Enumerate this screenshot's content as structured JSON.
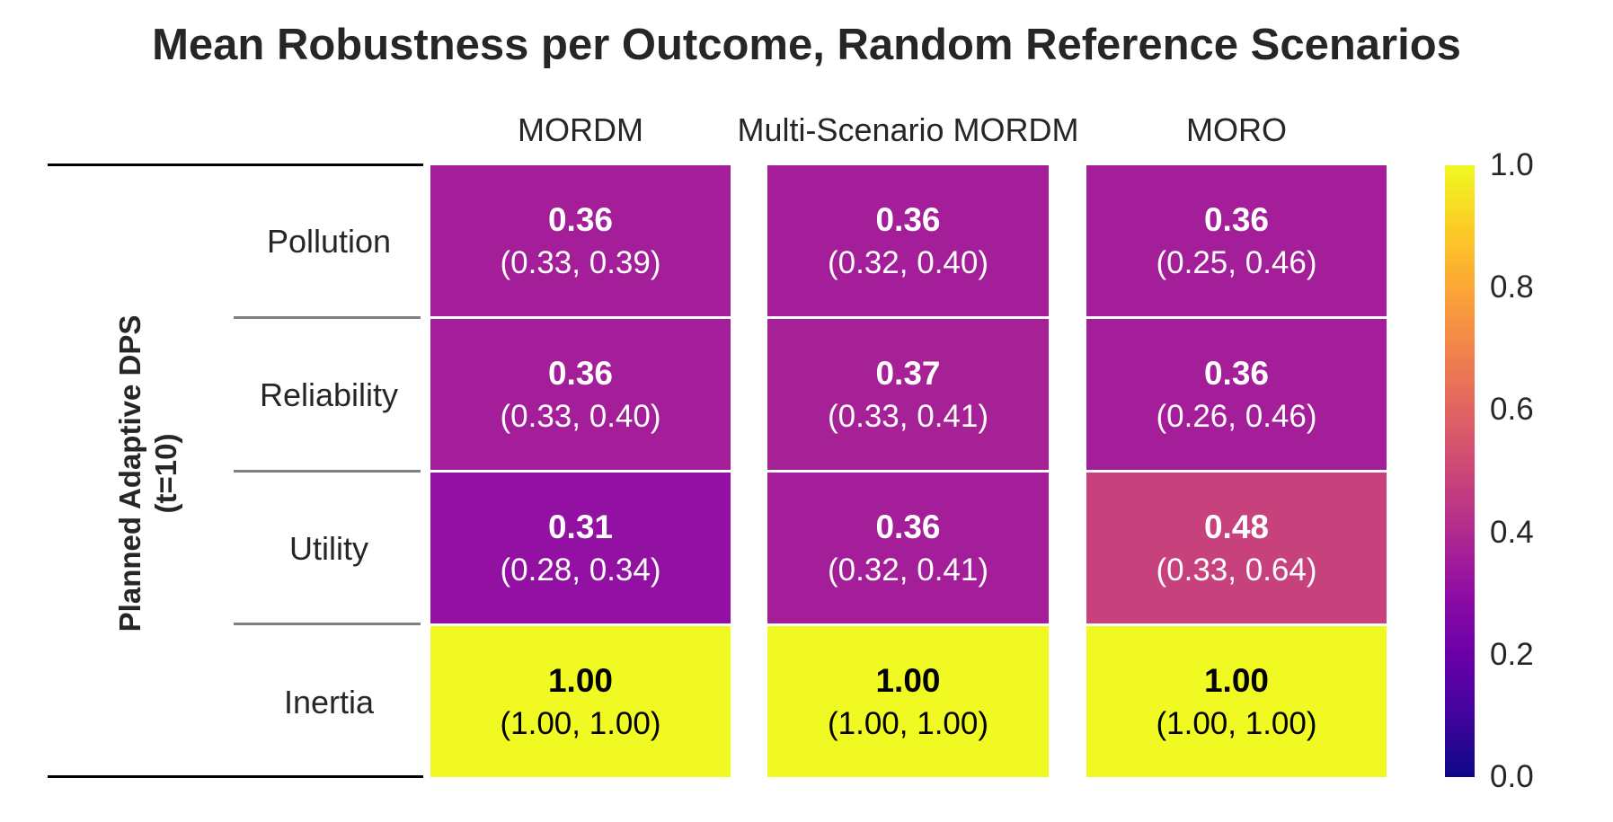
{
  "chart_data": {
    "type": "heatmap",
    "title": "Mean Robustness per Outcome, Random Reference Scenarios",
    "columns": [
      "MORDM",
      "Multi-Scenario MORDM",
      "MORO"
    ],
    "group_label_line1": "Planned Adaptive DPS",
    "group_label_line2": "(t=10)",
    "rows": [
      "Pollution",
      "Reliability",
      "Utility",
      "Inertia"
    ],
    "values": [
      [
        0.36,
        0.36,
        0.36
      ],
      [
        0.36,
        0.37,
        0.36
      ],
      [
        0.31,
        0.36,
        0.48
      ],
      [
        1.0,
        1.0,
        1.0
      ]
    ],
    "value_labels": [
      [
        "0.36",
        "0.36",
        "0.36"
      ],
      [
        "0.36",
        "0.37",
        "0.36"
      ],
      [
        "0.31",
        "0.36",
        "0.48"
      ],
      [
        "1.00",
        "1.00",
        "1.00"
      ]
    ],
    "interval_labels": [
      [
        "(0.33, 0.39)",
        "(0.32, 0.40)",
        "(0.25, 0.46)"
      ],
      [
        "(0.33, 0.40)",
        "(0.33, 0.41)",
        "(0.26, 0.46)"
      ],
      [
        "(0.28, 0.34)",
        "(0.32, 0.41)",
        "(0.33, 0.64)"
      ],
      [
        "(1.00, 1.00)",
        "(1.00, 1.00)",
        "(1.00, 1.00)"
      ]
    ],
    "colormap": "plasma",
    "vmin": 0.0,
    "vmax": 1.0,
    "colorbar_ticks": [
      "0.0",
      "0.2",
      "0.4",
      "0.6",
      "0.8",
      "1.0"
    ],
    "colorbar_placement": "right",
    "grid": false
  }
}
